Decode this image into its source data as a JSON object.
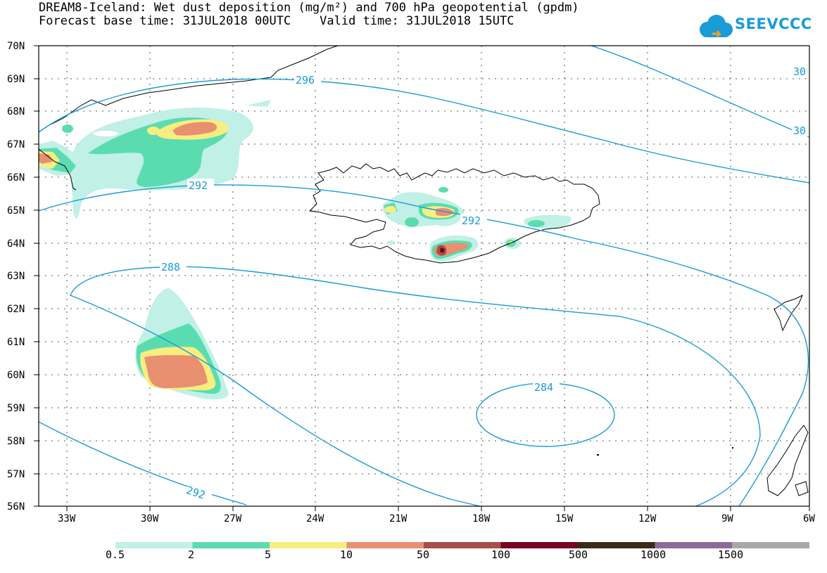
{
  "title": {
    "line1": "DREAM8-Iceland: Wet dust deposition (mg/m²) and 700 hPa geopotential (gpdm)",
    "line2": "Forecast base time: 31JUL2018 00UTC    Valid time: 31JUL2018 15UTC"
  },
  "logo": {
    "text": "SEEVCCC",
    "icon": "cloud-icon"
  },
  "map": {
    "region": "Iceland and North Atlantic",
    "lat_labels": [
      "70N",
      "69N",
      "68N",
      "67N",
      "66N",
      "65N",
      "64N",
      "63N",
      "62N",
      "61N",
      "60N",
      "59N",
      "58N",
      "57N",
      "56N"
    ],
    "lon_labels": [
      "33W",
      "30W",
      "27W",
      "24W",
      "21W",
      "18W",
      "15W",
      "12W",
      "9W",
      "6W"
    ],
    "gridlines": true
  },
  "contours": [
    {
      "label": "296",
      "units": "gpdm"
    },
    {
      "label": "292",
      "units": "gpdm"
    },
    {
      "label": "292",
      "units": "gpdm"
    },
    {
      "label": "288",
      "units": "gpdm"
    },
    {
      "label": "284",
      "units": "gpdm"
    },
    {
      "label": "292",
      "units": "gpdm"
    },
    {
      "label": "30",
      "units": "gpdm"
    },
    {
      "label": "30",
      "units": "gpdm"
    }
  ],
  "legend": {
    "labels": [
      "0.5",
      "2",
      "5",
      "10",
      "50",
      "100",
      "500",
      "1000",
      "1500"
    ],
    "colors": [
      "#c0f0e6",
      "#5bdcb0",
      "#f8ee80",
      "#e89070",
      "#a84e48",
      "#780420",
      "#3a2a1a",
      "#8c6a9c",
      "#a8a8a8"
    ]
  }
}
